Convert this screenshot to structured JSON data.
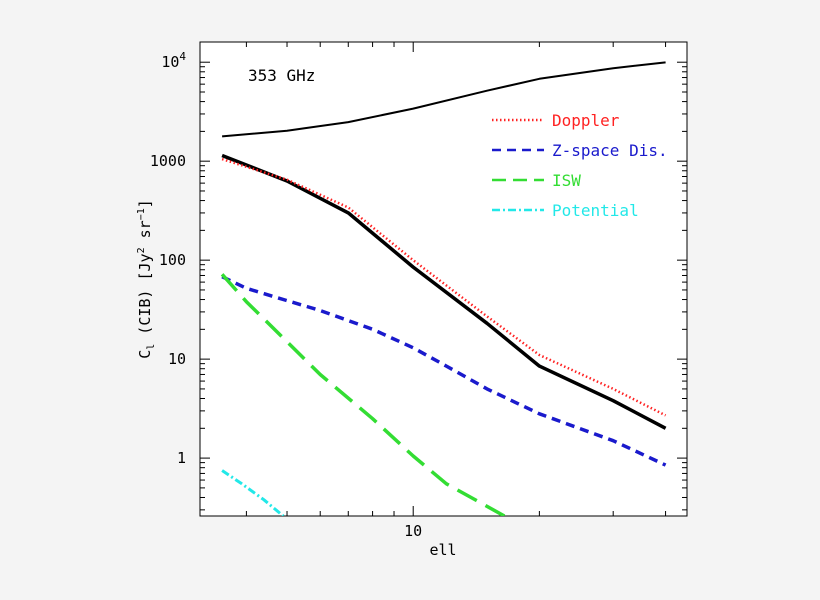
{
  "chart_data": {
    "type": "line",
    "title": "353 GHz",
    "xlabel": "ell",
    "ylabel": {
      "main": "C",
      "main_sub": "l",
      "rest": " (CIB) [Jy",
      "sup1": "2",
      "mid": " sr",
      "sup2": "−1",
      "end": "]"
    },
    "x_scale": "log",
    "y_scale": "log",
    "xlim": [
      3.1,
      45
    ],
    "ylim": [
      0.26,
      16000
    ],
    "x_ticks": [
      {
        "value": 10,
        "label": "10"
      }
    ],
    "y_ticks": [
      {
        "value": 1,
        "label": "1",
        "kind": "plain"
      },
      {
        "value": 10,
        "label": "10",
        "kind": "plain"
      },
      {
        "value": 100,
        "label": "100",
        "kind": "plain"
      },
      {
        "value": 1000,
        "label": "1000",
        "kind": "plain"
      },
      {
        "value": 10000,
        "base": "10",
        "exp": "4",
        "kind": "power"
      }
    ],
    "legend_position": "top-right",
    "series": [
      {
        "id": "upper",
        "color": "#000000",
        "style": "solid-thin",
        "x": [
          3.5,
          5,
          7,
          10,
          15,
          20,
          30,
          40
        ],
        "y": [
          1780,
          2030,
          2480,
          3400,
          5150,
          6800,
          8700,
          9950
        ]
      },
      {
        "id": "total",
        "color": "#000000",
        "style": "solid-thick",
        "x": [
          3.5,
          5,
          7,
          10,
          15,
          20,
          30,
          40
        ],
        "y": [
          1140,
          630,
          300,
          85,
          23,
          8.5,
          3.8,
          2.0
        ]
      },
      {
        "id": "doppler",
        "name": "Doppler",
        "color": "#ff2222",
        "style": "dotted",
        "x": [
          3.5,
          5,
          7,
          10,
          15,
          20,
          30,
          40
        ],
        "y": [
          1050,
          650,
          340,
          100,
          27,
          11,
          5.0,
          2.7
        ]
      },
      {
        "id": "zspace",
        "name": "Z-space Dis.",
        "color": "#1a1acc",
        "style": "dashed",
        "x": [
          3.5,
          4,
          5,
          6,
          8,
          10,
          12,
          15,
          20,
          30,
          40
        ],
        "y": [
          68,
          52,
          39,
          31,
          20,
          13,
          8.5,
          5.0,
          2.8,
          1.5,
          0.85
        ]
      },
      {
        "id": "isw",
        "name": "ISW",
        "color": "#33dd33",
        "style": "long-dashed",
        "x": [
          3.5,
          4,
          5,
          6,
          8,
          10,
          12,
          16.5
        ],
        "y": [
          72,
          38,
          15,
          7.0,
          2.5,
          1.05,
          0.55,
          0.26
        ]
      },
      {
        "id": "potential",
        "name": "Potential",
        "color": "#22e8e8",
        "style": "dash-dot",
        "x": [
          3.5,
          3.9,
          4.4,
          4.9
        ],
        "y": [
          0.75,
          0.55,
          0.38,
          0.26
        ]
      }
    ]
  }
}
